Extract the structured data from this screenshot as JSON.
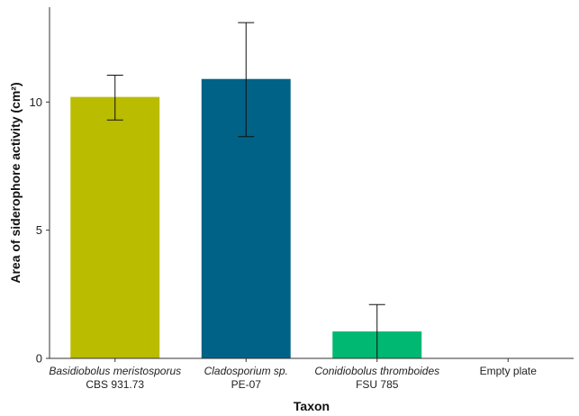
{
  "chart_data": {
    "type": "bar",
    "xlabel": "Taxon",
    "ylabel": "Area of siderophore activity (cm²)",
    "ylim": [
      0,
      13.7
    ],
    "yticks": [
      0,
      5,
      10
    ],
    "grid": false,
    "legend": "none",
    "error_bars": true,
    "categories": [
      {
        "line1": "Basidiobolus meristosporus",
        "line2": "CBS 931.73",
        "italic_line1": true,
        "value": 10.2,
        "err_low": 9.3,
        "err_high": 11.05,
        "color": "#BABC00"
      },
      {
        "line1": "Cladosporium sp.",
        "line2": "PE-07",
        "italic_line1": true,
        "value": 10.9,
        "err_low": 8.65,
        "err_high": 13.1,
        "color": "#006286"
      },
      {
        "line1": "Conidiobolus thromboides",
        "line2": "FSU 785",
        "italic_line1": true,
        "value": 1.05,
        "err_low": 0.0,
        "err_high": 2.1,
        "color": "#00B871"
      },
      {
        "line1": "Empty plate",
        "line2": "",
        "italic_line1": false,
        "value": 0.0,
        "err_low": 0.0,
        "err_high": 0.0,
        "color": "#888888"
      }
    ]
  }
}
